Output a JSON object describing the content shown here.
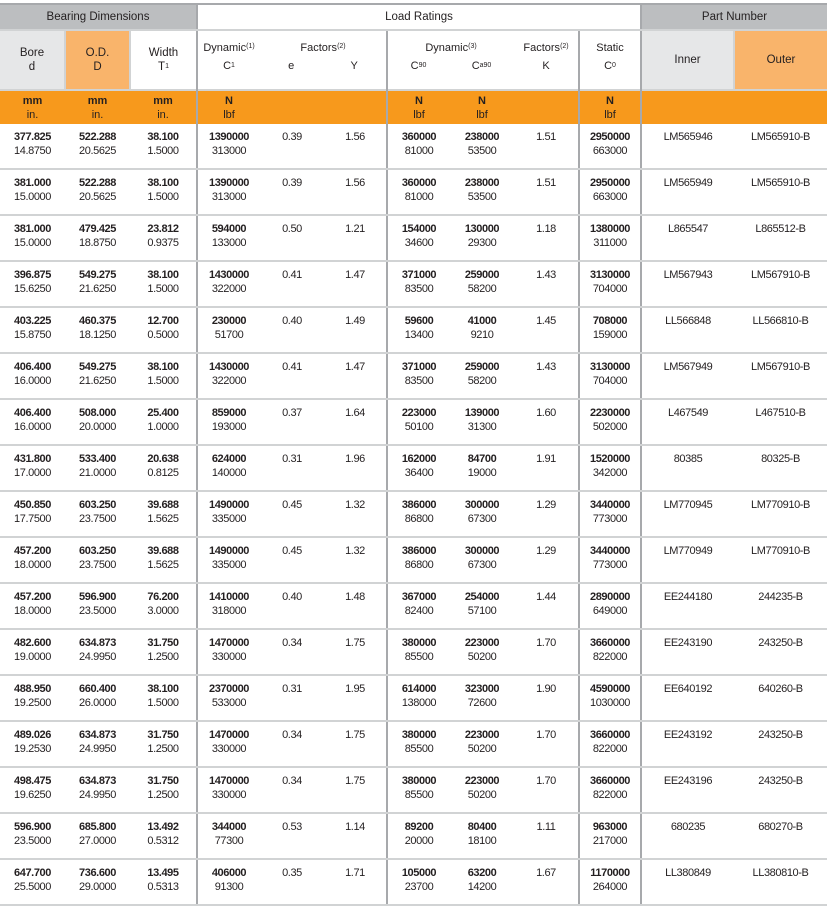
{
  "header": {
    "bearing_dimensions": "Bearing Dimensions",
    "load_ratings": "Load Ratings",
    "part_number": "Part Number",
    "bore": {
      "line1": "Bore",
      "line2": "d"
    },
    "od": {
      "line1": "O.D.",
      "line2": "D"
    },
    "width": {
      "line1": "Width",
      "line2": "T",
      "sub": "1"
    },
    "dynamic1": {
      "label": "Dynamic",
      "sup": "(1)",
      "sym": "C",
      "sub": "1"
    },
    "factors1": {
      "label": "Factors",
      "sup": "(2)",
      "e": "e",
      "y": "Y"
    },
    "dynamic3": {
      "label": "Dynamic",
      "sup": "(3)",
      "c90": "C",
      "c90_sub": "90",
      "ca90": "C",
      "ca90_sub": "a90"
    },
    "factors2": {
      "label": "Factors",
      "sup": "(2)",
      "k": "K"
    },
    "static": {
      "label": "Static",
      "sym": "C",
      "sub": "0"
    },
    "inner": "Inner",
    "outer": "Outer"
  },
  "units": {
    "mm": "mm",
    "in": "in.",
    "n": "N",
    "lbf": "lbf"
  },
  "colors": {
    "header_grey": "#bcbec0",
    "light_grey": "#e6e7e8",
    "light_orange": "#f9b46b",
    "orange": "#f7991c"
  },
  "rows": [
    {
      "bore_mm": "377.825",
      "bore_in": "14.8750",
      "od_mm": "522.288",
      "od_in": "20.5625",
      "w_mm": "38.100",
      "w_in": "1.5000",
      "c1_n": "1390000",
      "c1_lbf": "313000",
      "e": "0.39",
      "y": "1.56",
      "c90_n": "360000",
      "c90_lbf": "81000",
      "ca90_n": "238000",
      "ca90_lbf": "53500",
      "k": "1.51",
      "c0_n": "2950000",
      "c0_lbf": "663000",
      "inner": "LM565946",
      "outer": "LM565910-B"
    },
    {
      "bore_mm": "381.000",
      "bore_in": "15.0000",
      "od_mm": "522.288",
      "od_in": "20.5625",
      "w_mm": "38.100",
      "w_in": "1.5000",
      "c1_n": "1390000",
      "c1_lbf": "313000",
      "e": "0.39",
      "y": "1.56",
      "c90_n": "360000",
      "c90_lbf": "81000",
      "ca90_n": "238000",
      "ca90_lbf": "53500",
      "k": "1.51",
      "c0_n": "2950000",
      "c0_lbf": "663000",
      "inner": "LM565949",
      "outer": "LM565910-B"
    },
    {
      "bore_mm": "381.000",
      "bore_in": "15.0000",
      "od_mm": "479.425",
      "od_in": "18.8750",
      "w_mm": "23.812",
      "w_in": "0.9375",
      "c1_n": "594000",
      "c1_lbf": "133000",
      "e": "0.50",
      "y": "1.21",
      "c90_n": "154000",
      "c90_lbf": "34600",
      "ca90_n": "130000",
      "ca90_lbf": "29300",
      "k": "1.18",
      "c0_n": "1380000",
      "c0_lbf": "311000",
      "inner": "L865547",
      "outer": "L865512-B"
    },
    {
      "bore_mm": "396.875",
      "bore_in": "15.6250",
      "od_mm": "549.275",
      "od_in": "21.6250",
      "w_mm": "38.100",
      "w_in": "1.5000",
      "c1_n": "1430000",
      "c1_lbf": "322000",
      "e": "0.41",
      "y": "1.47",
      "c90_n": "371000",
      "c90_lbf": "83500",
      "ca90_n": "259000",
      "ca90_lbf": "58200",
      "k": "1.43",
      "c0_n": "3130000",
      "c0_lbf": "704000",
      "inner": "LM567943",
      "outer": "LM567910-B"
    },
    {
      "bore_mm": "403.225",
      "bore_in": "15.8750",
      "od_mm": "460.375",
      "od_in": "18.1250",
      "w_mm": "12.700",
      "w_in": "0.5000",
      "c1_n": "230000",
      "c1_lbf": "51700",
      "e": "0.40",
      "y": "1.49",
      "c90_n": "59600",
      "c90_lbf": "13400",
      "ca90_n": "41000",
      "ca90_lbf": "9210",
      "k": "1.45",
      "c0_n": "708000",
      "c0_lbf": "159000",
      "inner": "LL566848",
      "outer": "LL566810-B"
    },
    {
      "bore_mm": "406.400",
      "bore_in": "16.0000",
      "od_mm": "549.275",
      "od_in": "21.6250",
      "w_mm": "38.100",
      "w_in": "1.5000",
      "c1_n": "1430000",
      "c1_lbf": "322000",
      "e": "0.41",
      "y": "1.47",
      "c90_n": "371000",
      "c90_lbf": "83500",
      "ca90_n": "259000",
      "ca90_lbf": "58200",
      "k": "1.43",
      "c0_n": "3130000",
      "c0_lbf": "704000",
      "inner": "LM567949",
      "outer": "LM567910-B"
    },
    {
      "bore_mm": "406.400",
      "bore_in": "16.0000",
      "od_mm": "508.000",
      "od_in": "20.0000",
      "w_mm": "25.400",
      "w_in": "1.0000",
      "c1_n": "859000",
      "c1_lbf": "193000",
      "e": "0.37",
      "y": "1.64",
      "c90_n": "223000",
      "c90_lbf": "50100",
      "ca90_n": "139000",
      "ca90_lbf": "31300",
      "k": "1.60",
      "c0_n": "2230000",
      "c0_lbf": "502000",
      "inner": "L467549",
      "outer": "L467510-B"
    },
    {
      "bore_mm": "431.800",
      "bore_in": "17.0000",
      "od_mm": "533.400",
      "od_in": "21.0000",
      "w_mm": "20.638",
      "w_in": "0.8125",
      "c1_n": "624000",
      "c1_lbf": "140000",
      "e": "0.31",
      "y": "1.96",
      "c90_n": "162000",
      "c90_lbf": "36400",
      "ca90_n": "84700",
      "ca90_lbf": "19000",
      "k": "1.91",
      "c0_n": "1520000",
      "c0_lbf": "342000",
      "inner": "80385",
      "outer": "80325-B"
    },
    {
      "bore_mm": "450.850",
      "bore_in": "17.7500",
      "od_mm": "603.250",
      "od_in": "23.7500",
      "w_mm": "39.688",
      "w_in": "1.5625",
      "c1_n": "1490000",
      "c1_lbf": "335000",
      "e": "0.45",
      "y": "1.32",
      "c90_n": "386000",
      "c90_lbf": "86800",
      "ca90_n": "300000",
      "ca90_lbf": "67300",
      "k": "1.29",
      "c0_n": "3440000",
      "c0_lbf": "773000",
      "inner": "LM770945",
      "outer": "LM770910-B"
    },
    {
      "bore_mm": "457.200",
      "bore_in": "18.0000",
      "od_mm": "603.250",
      "od_in": "23.7500",
      "w_mm": "39.688",
      "w_in": "1.5625",
      "c1_n": "1490000",
      "c1_lbf": "335000",
      "e": "0.45",
      "y": "1.32",
      "c90_n": "386000",
      "c90_lbf": "86800",
      "ca90_n": "300000",
      "ca90_lbf": "67300",
      "k": "1.29",
      "c0_n": "3440000",
      "c0_lbf": "773000",
      "inner": "LM770949",
      "outer": "LM770910-B"
    },
    {
      "bore_mm": "457.200",
      "bore_in": "18.0000",
      "od_mm": "596.900",
      "od_in": "23.5000",
      "w_mm": "76.200",
      "w_in": "3.0000",
      "c1_n": "1410000",
      "c1_lbf": "318000",
      "e": "0.40",
      "y": "1.48",
      "c90_n": "367000",
      "c90_lbf": "82400",
      "ca90_n": "254000",
      "ca90_lbf": "57100",
      "k": "1.44",
      "c0_n": "2890000",
      "c0_lbf": "649000",
      "inner": "EE244180",
      "outer": "244235-B"
    },
    {
      "bore_mm": "482.600",
      "bore_in": "19.0000",
      "od_mm": "634.873",
      "od_in": "24.9950",
      "w_mm": "31.750",
      "w_in": "1.2500",
      "c1_n": "1470000",
      "c1_lbf": "330000",
      "e": "0.34",
      "y": "1.75",
      "c90_n": "380000",
      "c90_lbf": "85500",
      "ca90_n": "223000",
      "ca90_lbf": "50200",
      "k": "1.70",
      "c0_n": "3660000",
      "c0_lbf": "822000",
      "inner": "EE243190",
      "outer": "243250-B"
    },
    {
      "bore_mm": "488.950",
      "bore_in": "19.2500",
      "od_mm": "660.400",
      "od_in": "26.0000",
      "w_mm": "38.100",
      "w_in": "1.5000",
      "c1_n": "2370000",
      "c1_lbf": "533000",
      "e": "0.31",
      "y": "1.95",
      "c90_n": "614000",
      "c90_lbf": "138000",
      "ca90_n": "323000",
      "ca90_lbf": "72600",
      "k": "1.90",
      "c0_n": "4590000",
      "c0_lbf": "1030000",
      "inner": "EE640192",
      "outer": "640260-B"
    },
    {
      "bore_mm": "489.026",
      "bore_in": "19.2530",
      "od_mm": "634.873",
      "od_in": "24.9950",
      "w_mm": "31.750",
      "w_in": "1.2500",
      "c1_n": "1470000",
      "c1_lbf": "330000",
      "e": "0.34",
      "y": "1.75",
      "c90_n": "380000",
      "c90_lbf": "85500",
      "ca90_n": "223000",
      "ca90_lbf": "50200",
      "k": "1.70",
      "c0_n": "3660000",
      "c0_lbf": "822000",
      "inner": "EE243192",
      "outer": "243250-B"
    },
    {
      "bore_mm": "498.475",
      "bore_in": "19.6250",
      "od_mm": "634.873",
      "od_in": "24.9950",
      "w_mm": "31.750",
      "w_in": "1.2500",
      "c1_n": "1470000",
      "c1_lbf": "330000",
      "e": "0.34",
      "y": "1.75",
      "c90_n": "380000",
      "c90_lbf": "85500",
      "ca90_n": "223000",
      "ca90_lbf": "50200",
      "k": "1.70",
      "c0_n": "3660000",
      "c0_lbf": "822000",
      "inner": "EE243196",
      "outer": "243250-B"
    },
    {
      "bore_mm": "596.900",
      "bore_in": "23.5000",
      "od_mm": "685.800",
      "od_in": "27.0000",
      "w_mm": "13.492",
      "w_in": "0.5312",
      "c1_n": "344000",
      "c1_lbf": "77300",
      "e": "0.53",
      "y": "1.14",
      "c90_n": "89200",
      "c90_lbf": "20000",
      "ca90_n": "80400",
      "ca90_lbf": "18100",
      "k": "1.11",
      "c0_n": "963000",
      "c0_lbf": "217000",
      "inner": "680235",
      "outer": "680270-B"
    },
    {
      "bore_mm": "647.700",
      "bore_in": "25.5000",
      "od_mm": "736.600",
      "od_in": "29.0000",
      "w_mm": "13.495",
      "w_in": "0.5313",
      "c1_n": "406000",
      "c1_lbf": "91300",
      "e": "0.35",
      "y": "1.71",
      "c90_n": "105000",
      "c90_lbf": "23700",
      "ca90_n": "63200",
      "ca90_lbf": "14200",
      "k": "1.67",
      "c0_n": "1170000",
      "c0_lbf": "264000",
      "inner": "LL380849",
      "outer": "LL380810-B"
    }
  ]
}
